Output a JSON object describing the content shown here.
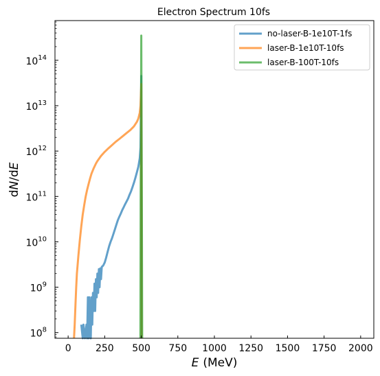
{
  "chart_data": {
    "type": "line",
    "title": "Electron Spectrum 10fs",
    "xlabel": {
      "main": "E",
      "unit": "(MeV)"
    },
    "ylabel": {
      "main": "dN/dE",
      "parts": [
        "d",
        "N",
        "/d",
        "E"
      ]
    },
    "xlim": [
      -90,
      2090
    ],
    "ylim": [
      75000000,
      750000000000000
    ],
    "yscale": "log",
    "grid": false,
    "legend_position": "top-right",
    "x_ticks": [
      0,
      250,
      500,
      750,
      1000,
      1250,
      1500,
      1750,
      2000
    ],
    "x_tick_labels": [
      "0",
      "250",
      "500",
      "750",
      "1000",
      "1250",
      "1500",
      "1750",
      "2000"
    ],
    "y_ticks": [
      {
        "value": 100000000,
        "base": "10",
        "exp": "8"
      },
      {
        "value": 1000000000,
        "base": "10",
        "exp": "9"
      },
      {
        "value": 10000000000,
        "base": "10",
        "exp": "10"
      },
      {
        "value": 100000000000,
        "base": "10",
        "exp": "11"
      },
      {
        "value": 1000000000000,
        "base": "10",
        "exp": "12"
      },
      {
        "value": 10000000000000,
        "base": "10",
        "exp": "13"
      },
      {
        "value": 100000000000000,
        "base": "10",
        "exp": "14"
      }
    ],
    "series": [
      {
        "name": "no-laser-B-1e10T-1fs",
        "color": "#1f77b4",
        "points": [
          [
            90,
            150000000
          ],
          [
            100,
            75000000
          ],
          [
            105,
            150000000
          ],
          [
            115,
            75000000
          ],
          [
            125,
            150000000
          ],
          [
            130,
            75000000
          ],
          [
            135,
            600000000
          ],
          [
            140,
            75000000
          ],
          [
            145,
            600000000
          ],
          [
            150,
            150000000
          ],
          [
            155,
            75000000
          ],
          [
            160,
            600000000
          ],
          [
            165,
            150000000
          ],
          [
            170,
            750000000
          ],
          [
            175,
            300000000
          ],
          [
            180,
            1200000000
          ],
          [
            185,
            300000000
          ],
          [
            190,
            1500000000
          ],
          [
            195,
            600000000
          ],
          [
            200,
            2000000000
          ],
          [
            205,
            750000000
          ],
          [
            210,
            2500000000
          ],
          [
            215,
            1000000000
          ],
          [
            220,
            2600000000
          ],
          [
            225,
            1500000000
          ],
          [
            230,
            2800000000
          ],
          [
            240,
            3000000000
          ],
          [
            250,
            3500000000
          ],
          [
            260,
            4500000000
          ],
          [
            270,
            6000000000
          ],
          [
            280,
            8000000000
          ],
          [
            290,
            10000000000
          ],
          [
            300,
            12000000000
          ],
          [
            310,
            15000000000
          ],
          [
            320,
            19000000000
          ],
          [
            330,
            24000000000
          ],
          [
            340,
            30000000000
          ],
          [
            350,
            36000000000
          ],
          [
            360,
            42000000000
          ],
          [
            370,
            50000000000
          ],
          [
            380,
            58000000000
          ],
          [
            390,
            68000000000
          ],
          [
            400,
            78000000000
          ],
          [
            410,
            90000000000
          ],
          [
            420,
            110000000000
          ],
          [
            430,
            130000000000
          ],
          [
            440,
            160000000000
          ],
          [
            450,
            200000000000
          ],
          [
            460,
            260000000000
          ],
          [
            470,
            340000000000
          ],
          [
            480,
            450000000000
          ],
          [
            490,
            700000000000
          ],
          [
            495,
            1200000000000
          ],
          [
            500,
            45000000000000
          ],
          [
            502,
            75000000
          ]
        ]
      },
      {
        "name": "laser-B-1e10T-10fs",
        "color": "#ff7f0e",
        "points": [
          [
            40,
            75000000
          ],
          [
            45,
            150000000
          ],
          [
            50,
            400000000
          ],
          [
            55,
            1000000000
          ],
          [
            60,
            2000000000
          ],
          [
            70,
            5000000000
          ],
          [
            80,
            11000000000
          ],
          [
            90,
            22000000000
          ],
          [
            100,
            40000000000
          ],
          [
            110,
            65000000000
          ],
          [
            120,
            100000000000
          ],
          [
            130,
            140000000000
          ],
          [
            140,
            190000000000
          ],
          [
            150,
            250000000000
          ],
          [
            160,
            320000000000
          ],
          [
            175,
            420000000000
          ],
          [
            190,
            530000000000
          ],
          [
            200,
            600000000000
          ],
          [
            225,
            780000000000
          ],
          [
            250,
            960000000000
          ],
          [
            275,
            1150000000000
          ],
          [
            300,
            1350000000000
          ],
          [
            325,
            1600000000000
          ],
          [
            350,
            1850000000000
          ],
          [
            375,
            2150000000000
          ],
          [
            400,
            2500000000000
          ],
          [
            425,
            2900000000000
          ],
          [
            450,
            3500000000000
          ],
          [
            470,
            4400000000000
          ],
          [
            480,
            5200000000000
          ],
          [
            490,
            7000000000000
          ],
          [
            495,
            10000000000000
          ],
          [
            500,
            30000000000000
          ],
          [
            502,
            75000000
          ]
        ]
      },
      {
        "name": "laser-B-100T-10fs",
        "color": "#2ca02c",
        "points": [
          [
            494,
            75000000
          ],
          [
            496,
            100000000000
          ],
          [
            498,
            5000000000000
          ],
          [
            500,
            350000000000000
          ],
          [
            502,
            5000000000000
          ],
          [
            504,
            100000000000
          ],
          [
            506,
            75000000
          ]
        ]
      }
    ]
  }
}
